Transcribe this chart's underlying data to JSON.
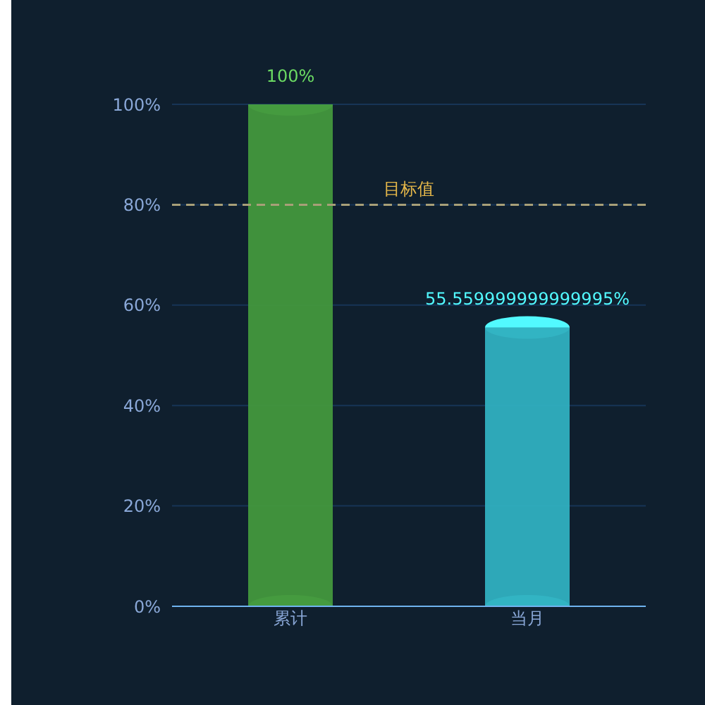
{
  "chart_data": {
    "type": "bar",
    "categories": [
      "累计",
      "当月"
    ],
    "values": [
      100,
      55.559999999999995
    ],
    "colors": [
      "#43983d",
      "#30b0c0"
    ],
    "value_labels": [
      "100%",
      "55.559999999999995%"
    ],
    "ylim": [
      0,
      100
    ],
    "yticks": [
      {
        "value": 0,
        "label": "0%"
      },
      {
        "value": 20,
        "label": "20%"
      },
      {
        "value": 40,
        "label": "40%"
      },
      {
        "value": 60,
        "label": "60%"
      },
      {
        "value": 80,
        "label": "80%"
      },
      {
        "value": 100,
        "label": "100%"
      }
    ],
    "grid": "y",
    "ref_lines": [
      {
        "axis": "y",
        "value": 80,
        "label": "目标值",
        "color": "#a89f78",
        "line_style": "dashed"
      }
    ]
  }
}
